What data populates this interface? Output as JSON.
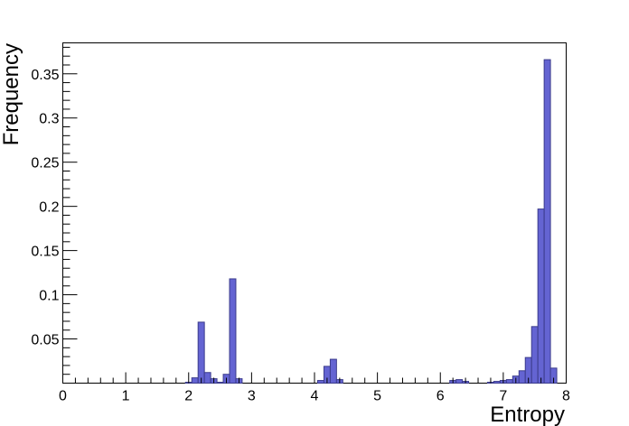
{
  "chart_data": {
    "type": "bar",
    "title": "",
    "xlabel": "Entropy",
    "ylabel": "Frequency",
    "xlim": [
      0,
      8
    ],
    "ylim": [
      0,
      0.385
    ],
    "bin_width": 0.1,
    "grid": false,
    "legend": "none",
    "bar_color": "#6464d2",
    "bar_edge_color": "#3c3c8c",
    "x_ticks": [
      {
        "value": 0,
        "label": "0"
      },
      {
        "value": 1,
        "label": "1"
      },
      {
        "value": 2,
        "label": "2"
      },
      {
        "value": 3,
        "label": "3"
      },
      {
        "value": 4,
        "label": "4"
      },
      {
        "value": 5,
        "label": "5"
      },
      {
        "value": 6,
        "label": "6"
      },
      {
        "value": 7,
        "label": "7"
      },
      {
        "value": 8,
        "label": "8"
      }
    ],
    "y_ticks": [
      {
        "value": 0.05,
        "label": "0.05"
      },
      {
        "value": 0.1,
        "label": "0.1"
      },
      {
        "value": 0.15,
        "label": "0.15"
      },
      {
        "value": 0.2,
        "label": "0.2"
      },
      {
        "value": 0.25,
        "label": "0.25"
      },
      {
        "value": 0.3,
        "label": "0.3"
      },
      {
        "value": 0.35,
        "label": "0.35"
      }
    ],
    "bins": [
      {
        "x": 2.0,
        "value": 0.001
      },
      {
        "x": 2.1,
        "value": 0.006
      },
      {
        "x": 2.2,
        "value": 0.069
      },
      {
        "x": 2.3,
        "value": 0.012
      },
      {
        "x": 2.4,
        "value": 0.005
      },
      {
        "x": 2.5,
        "value": 0.001
      },
      {
        "x": 2.6,
        "value": 0.01
      },
      {
        "x": 2.7,
        "value": 0.118
      },
      {
        "x": 2.8,
        "value": 0.005
      },
      {
        "x": 4.1,
        "value": 0.003
      },
      {
        "x": 4.2,
        "value": 0.019
      },
      {
        "x": 4.3,
        "value": 0.027
      },
      {
        "x": 4.4,
        "value": 0.004
      },
      {
        "x": 6.2,
        "value": 0.003
      },
      {
        "x": 6.3,
        "value": 0.004
      },
      {
        "x": 6.4,
        "value": 0.002
      },
      {
        "x": 6.8,
        "value": 0.001
      },
      {
        "x": 6.9,
        "value": 0.002
      },
      {
        "x": 7.0,
        "value": 0.003
      },
      {
        "x": 7.1,
        "value": 0.004
      },
      {
        "x": 7.2,
        "value": 0.008
      },
      {
        "x": 7.3,
        "value": 0.014
      },
      {
        "x": 7.4,
        "value": 0.029
      },
      {
        "x": 7.5,
        "value": 0.064
      },
      {
        "x": 7.6,
        "value": 0.197
      },
      {
        "x": 7.7,
        "value": 0.366
      },
      {
        "x": 7.8,
        "value": 0.017
      }
    ]
  }
}
